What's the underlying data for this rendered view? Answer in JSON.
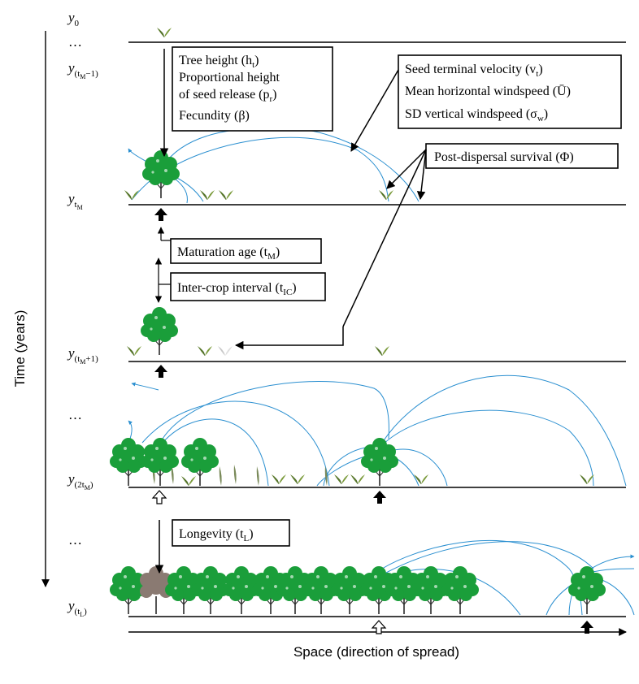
{
  "axes": {
    "time_label": "Time (years)",
    "space_label": "Space (direction of spread)"
  },
  "rows": [
    {
      "id": "y0",
      "base": "y",
      "sub": "0"
    },
    {
      "id": "ytm-1",
      "base": "y",
      "sub": "(t",
      "subsub": "M",
      "tail": "−1)"
    },
    {
      "id": "ytm",
      "base": "y",
      "sub": "t",
      "subsub": "M",
      "tail": ""
    },
    {
      "id": "ytm+1",
      "base": "y",
      "sub": "(t",
      "subsub": "M",
      "tail": "+1)"
    },
    {
      "id": "y2tm",
      "base": "y",
      "sub": "(2t",
      "subsub": "M",
      "tail": ")"
    },
    {
      "id": "ytl",
      "base": "y",
      "sub": "(t",
      "subsub": "L",
      "tail": ")"
    }
  ],
  "ellipsis": "…",
  "boxes": {
    "tree": {
      "line1": "Tree height (h",
      "line1_sub": "t",
      "line1_end": ")",
      "line2": "Proportional height",
      "line3": "of seed release (p",
      "line3_sub": "r",
      "line3_end": ")",
      "line4": "Fecundity (β)"
    },
    "seed": {
      "line1": "Seed terminal velocity (v",
      "line1_sub": "t",
      "line1_end": ")",
      "line2": "Mean horizontal windspeed (Ū)",
      "line3": "SD vertical windspeed (σ",
      "line3_sub": "w",
      "line3_end": ")"
    },
    "survival": {
      "text": "Post-dispersal survival (Φ)"
    },
    "maturation": {
      "text": "Maturation age (t",
      "sub": "M",
      "end": ")"
    },
    "intercrop": {
      "text": "Inter-crop interval (t",
      "sub": "IC",
      "end": ")"
    },
    "longevity": {
      "text": "Longevity (t",
      "sub": "L",
      "end": ")"
    }
  },
  "colors": {
    "tree_green": "#1a9e3a",
    "dead_tree": "#8a7a72",
    "trajectory_blue": "#2a8fd0",
    "seedling_green": "#5a7a2a",
    "seedling_dead": "#c8c8c8",
    "line": "#000000"
  }
}
